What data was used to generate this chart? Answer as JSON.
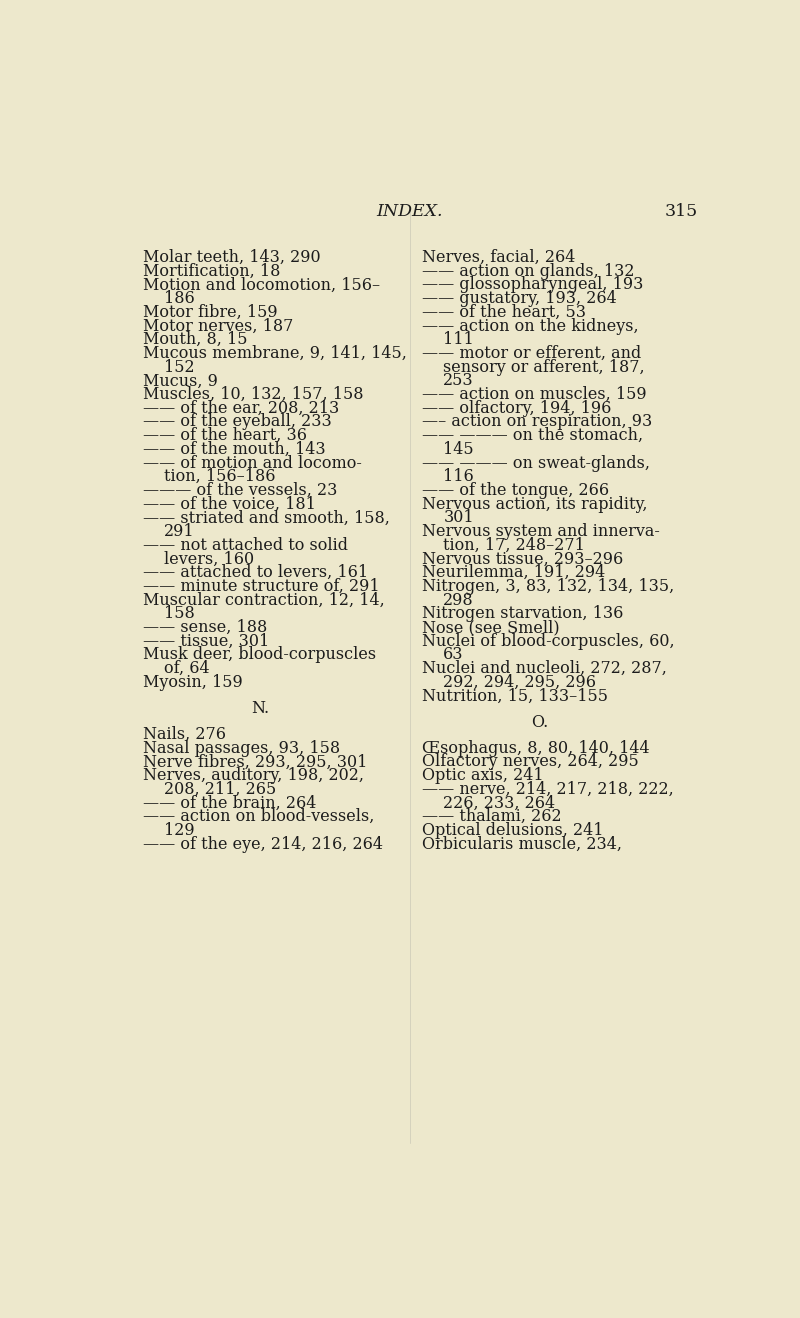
{
  "bg_color": "#ede8cc",
  "text_color": "#1c1c1c",
  "title": "INDEX.",
  "page_num": "315",
  "title_fontsize": 12.5,
  "body_fontsize": 11.5,
  "left_lines": [
    [
      "Molar teeth, 143, 290",
      0
    ],
    [
      "Mortification, 18",
      0
    ],
    [
      "Motion and locomotion, 156–",
      0
    ],
    [
      "    186",
      1
    ],
    [
      "Motor fibre, 159",
      0
    ],
    [
      "Motor nerves, 187",
      0
    ],
    [
      "Mouth, 8, 15",
      0
    ],
    [
      "Mucous membrane, 9, 141, 145,",
      0
    ],
    [
      "    152",
      1
    ],
    [
      "Mucus, 9",
      0
    ],
    [
      "Muscles, 10, 132, 157, 158",
      0
    ],
    [
      "—— of the ear, 208, 213",
      0
    ],
    [
      "—— of the eyeball, 233",
      0
    ],
    [
      "—— of the heart, 36",
      0
    ],
    [
      "—— of the mouth, 143",
      0
    ],
    [
      "—— of motion and locomo-",
      0
    ],
    [
      "    tion, 156–186",
      1
    ],
    [
      "——— of the vessels, 23",
      0
    ],
    [
      "—— of the voice, 181",
      0
    ],
    [
      "—— striated and smooth, 158,",
      0
    ],
    [
      "    291",
      1
    ],
    [
      "—— not attached to solid",
      0
    ],
    [
      "    levers, 160",
      1
    ],
    [
      "—— attached to levers, 161",
      0
    ],
    [
      "—— minute structure of, 291",
      0
    ],
    [
      "Muscular contraction, 12, 14,",
      0
    ],
    [
      "    158",
      1
    ],
    [
      "—— sense, 188",
      0
    ],
    [
      "—— tissue, 301",
      0
    ],
    [
      "Musk deer, blood-corpuscles",
      0
    ],
    [
      "    of, 64",
      1
    ],
    [
      "Myosin, 159",
      0
    ],
    [
      "",
      0
    ],
    [
      "N.",
      2
    ],
    [
      "",
      0
    ],
    [
      "Nails, 276",
      3
    ],
    [
      "Nasal passages, 93, 158",
      0
    ],
    [
      "Nerve fibres, 293, 295, 301",
      0
    ],
    [
      "Nerves, auditory, 198, 202,",
      0
    ],
    [
      "    208, 211, 265",
      1
    ],
    [
      "—— of the brain, 264",
      0
    ],
    [
      "—— action on blood-vessels,",
      0
    ],
    [
      "    129",
      1
    ],
    [
      "—— of the eye, 214, 216, 264",
      0
    ]
  ],
  "right_lines": [
    [
      "Nerves, facial, 264",
      0
    ],
    [
      "—— action on glands, 132",
      0
    ],
    [
      "—— glossopharyngeal, 193",
      0
    ],
    [
      "—— gustatory, 193, 264",
      0
    ],
    [
      "—— of the heart, 53",
      0
    ],
    [
      "—— action on the kidneys,",
      0
    ],
    [
      "    111",
      1
    ],
    [
      "—— motor or efferent, and",
      0
    ],
    [
      "    sensory or afferent, 187,",
      1
    ],
    [
      "    253",
      1
    ],
    [
      "—— action on muscles, 159",
      0
    ],
    [
      "—— olfactory, 194, 196",
      0
    ],
    [
      "—– action on respiration, 93",
      0
    ],
    [
      "—— ——— on the stomach,",
      0
    ],
    [
      "    145",
      1
    ],
    [
      "—— ——— on sweat-glands,",
      0
    ],
    [
      "    116",
      1
    ],
    [
      "—— of the tongue, 266",
      0
    ],
    [
      "Nervous action, its rapidity,",
      0
    ],
    [
      "    301",
      1
    ],
    [
      "Nervous system and innerva-",
      0
    ],
    [
      "    tion, 17, 248–271",
      1
    ],
    [
      "Nervous tissue, 293–296",
      0
    ],
    [
      "Neurilemma, 191, 294",
      0
    ],
    [
      "Nitrogen, 3, 83, 132, 134, 135,",
      0
    ],
    [
      "    298",
      1
    ],
    [
      "Nitrogen starvation, 136",
      0
    ],
    [
      "Nose (see Smell)",
      0
    ],
    [
      "Nuclei of blood-corpuscles, 60,",
      0
    ],
    [
      "    63",
      1
    ],
    [
      "Nuclei and nucleoli, 272, 287,",
      0
    ],
    [
      "    292, 294, 295, 296",
      1
    ],
    [
      "Nutrition, 15, 133–155",
      0
    ],
    [
      "",
      0
    ],
    [
      "O.",
      2
    ],
    [
      "",
      0
    ],
    [
      "Œsophagus, 8, 80, 140, 144",
      3
    ],
    [
      "Olfactory nerves, 264, 295",
      0
    ],
    [
      "Optic axis, 241",
      0
    ],
    [
      "—— nerve, 214, 217, 218, 222,",
      0
    ],
    [
      "    226, 233, 264",
      1
    ],
    [
      "—— thalami, 262",
      0
    ],
    [
      "Optical delusions, 241",
      0
    ],
    [
      "Orbicularis muscle, 234,",
      0
    ]
  ]
}
